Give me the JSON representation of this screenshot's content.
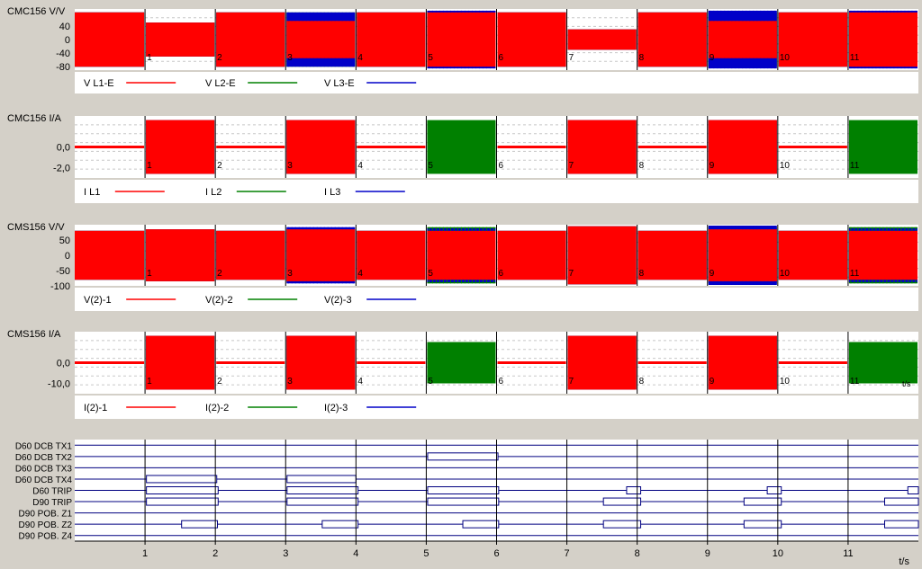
{
  "colors": {
    "background": "#d4d0c8",
    "plot_bg": "#ffffff",
    "grid": "#c8c8c8",
    "divider": "#000000",
    "digital_line": "#000080",
    "L1": "#ff0000",
    "L2": "#008000",
    "L3": "#0000c8"
  },
  "chart_data": [
    {
      "type": "line",
      "title": "CMC156 V/V",
      "xlim": [
        0,
        12
      ],
      "ylim": [
        -90,
        90
      ],
      "yticks": [
        40,
        0,
        -40,
        -80
      ],
      "ytick_labels": [
        "40",
        "0",
        "-40",
        "-80"
      ],
      "xtick_labels": [
        "1",
        "2",
        "3",
        "4",
        "5",
        "6",
        "7",
        "8",
        "9",
        "10",
        "11"
      ],
      "legend": [
        "V L1-E",
        "V L2-E",
        "V L3-E"
      ],
      "segments": [
        {
          "start": 0,
          "end": 1,
          "L1": 80,
          "L2": 80,
          "L3": 80
        },
        {
          "start": 1,
          "end": 2,
          "L1": 50,
          "L2": 50,
          "L3": 50
        },
        {
          "start": 2,
          "end": 3,
          "L1": 80,
          "L2": 80,
          "L3": 80
        },
        {
          "start": 3,
          "end": 4,
          "L1": 55,
          "L2": 80,
          "L3": 80
        },
        {
          "start": 4,
          "end": 5,
          "L1": 80,
          "L2": 80,
          "L3": 80
        },
        {
          "start": 5,
          "end": 6,
          "L1": 80,
          "L2": 80,
          "L3": 85
        },
        {
          "start": 6,
          "end": 7,
          "L1": 80,
          "L2": 80,
          "L3": 80
        },
        {
          "start": 7,
          "end": 8,
          "L1": 30,
          "L2": 30,
          "L3": 30
        },
        {
          "start": 8,
          "end": 9,
          "L1": 80,
          "L2": 80,
          "L3": 80
        },
        {
          "start": 9,
          "end": 10,
          "L1": 55,
          "L2": 80,
          "L3": 85
        },
        {
          "start": 10,
          "end": 11,
          "L1": 80,
          "L2": 80,
          "L3": 80
        },
        {
          "start": 11,
          "end": 12,
          "L1": 80,
          "L2": 80,
          "L3": 85
        }
      ]
    },
    {
      "type": "line",
      "title": "CMC156 I/A",
      "xlim": [
        0,
        12
      ],
      "ylim": [
        -3,
        3
      ],
      "yticks": [
        0,
        -2
      ],
      "ytick_labels": [
        "0,0",
        "-2,0"
      ],
      "xtick_labels": [
        "1",
        "2",
        "3",
        "4",
        "5",
        "6",
        "7",
        "8",
        "9",
        "10",
        "11"
      ],
      "legend": [
        "I L1",
        "I L2",
        "I L3"
      ],
      "segments": [
        {
          "start": 0,
          "end": 1,
          "L1": 0,
          "L2": 0,
          "L3": 0
        },
        {
          "start": 1,
          "end": 2,
          "L1": 2.6,
          "L2": 2.6,
          "L3": 2.6
        },
        {
          "start": 2,
          "end": 3,
          "L1": 0,
          "L2": 0,
          "L3": 0
        },
        {
          "start": 3,
          "end": 4,
          "L1": 2.6,
          "L2": 2.6,
          "L3": 2.6
        },
        {
          "start": 4,
          "end": 5,
          "L1": 0,
          "L2": 0,
          "L3": 0
        },
        {
          "start": 5,
          "end": 6,
          "L1": 0,
          "L2": 2.6,
          "L3": 0
        },
        {
          "start": 6,
          "end": 7,
          "L1": 0,
          "L2": 0,
          "L3": 0
        },
        {
          "start": 7,
          "end": 8,
          "L1": 2.6,
          "L2": 2.6,
          "L3": 2.6
        },
        {
          "start": 8,
          "end": 9,
          "L1": 0,
          "L2": 0,
          "L3": 0
        },
        {
          "start": 9,
          "end": 10,
          "L1": 2.6,
          "L2": 2.6,
          "L3": 2.6
        },
        {
          "start": 10,
          "end": 11,
          "L1": 0,
          "L2": 0,
          "L3": 0
        },
        {
          "start": 11,
          "end": 12,
          "L1": 0,
          "L2": 2.6,
          "L3": 0
        }
      ]
    },
    {
      "type": "line",
      "title": "CMS156 V/V",
      "xlim": [
        0,
        12
      ],
      "ylim": [
        -100,
        100
      ],
      "yticks": [
        50,
        0,
        -50,
        -100
      ],
      "ytick_labels": [
        "50",
        "0",
        "-50",
        "-100"
      ],
      "xtick_labels": [
        "1",
        "2",
        "3",
        "4",
        "5",
        "6",
        "7",
        "8",
        "9",
        "10",
        "11"
      ],
      "legend": [
        "V(2)-1",
        "V(2)-2",
        "V(2)-3"
      ],
      "segments": [
        {
          "start": 0,
          "end": 1,
          "L1": 80,
          "L2": 80,
          "L3": 80
        },
        {
          "start": 1,
          "end": 2,
          "L1": 85,
          "L2": 85,
          "L3": 85
        },
        {
          "start": 2,
          "end": 3,
          "L1": 80,
          "L2": 80,
          "L3": 80
        },
        {
          "start": 3,
          "end": 4,
          "L1": 85,
          "L2": 85,
          "L3": 92
        },
        {
          "start": 4,
          "end": 5,
          "L1": 80,
          "L2": 80,
          "L3": 80
        },
        {
          "start": 5,
          "end": 6,
          "L1": 80,
          "L2": 92,
          "L3": 88
        },
        {
          "start": 6,
          "end": 7,
          "L1": 80,
          "L2": 80,
          "L3": 80
        },
        {
          "start": 7,
          "end": 8,
          "L1": 95,
          "L2": 95,
          "L3": 95
        },
        {
          "start": 8,
          "end": 9,
          "L1": 80,
          "L2": 80,
          "L3": 80
        },
        {
          "start": 9,
          "end": 10,
          "L1": 85,
          "L2": 92,
          "L3": 97
        },
        {
          "start": 10,
          "end": 11,
          "L1": 80,
          "L2": 80,
          "L3": 80
        },
        {
          "start": 11,
          "end": 12,
          "L1": 80,
          "L2": 92,
          "L3": 88
        }
      ]
    },
    {
      "type": "line",
      "title": "CMS156 I/A",
      "xlim": [
        0,
        12
      ],
      "ylim": [
        -15,
        15
      ],
      "yticks": [
        0,
        -10
      ],
      "ytick_labels": [
        "0,0",
        "-10,0"
      ],
      "xtick_labels": [
        "1",
        "2",
        "3",
        "4",
        "5",
        "6",
        "7",
        "8",
        "9",
        "10",
        "11"
      ],
      "end_label": "t/s",
      "legend": [
        "I(2)-1",
        "I(2)-2",
        "I(2)-3"
      ],
      "segments": [
        {
          "start": 0,
          "end": 1,
          "L1": 0,
          "L2": 0,
          "L3": 0
        },
        {
          "start": 1,
          "end": 2,
          "L1": 13,
          "L2": 13,
          "L3": 13
        },
        {
          "start": 2,
          "end": 3,
          "L1": 0,
          "L2": 0,
          "L3": 0
        },
        {
          "start": 3,
          "end": 4,
          "L1": 13,
          "L2": 13,
          "L3": 13
        },
        {
          "start": 4,
          "end": 5,
          "L1": 0,
          "L2": 0,
          "L3": 0
        },
        {
          "start": 5,
          "end": 6,
          "L1": 0,
          "L2": 10,
          "L3": 0
        },
        {
          "start": 6,
          "end": 7,
          "L1": 0,
          "L2": 0,
          "L3": 0
        },
        {
          "start": 7,
          "end": 8,
          "L1": 13,
          "L2": 13,
          "L3": 13
        },
        {
          "start": 8,
          "end": 9,
          "L1": 0,
          "L2": 0,
          "L3": 0
        },
        {
          "start": 9,
          "end": 10,
          "L1": 13,
          "L2": 13,
          "L3": 13
        },
        {
          "start": 10,
          "end": 11,
          "L1": 0,
          "L2": 0,
          "L3": 0
        },
        {
          "start": 11,
          "end": 12,
          "L1": 0,
          "L2": 10,
          "L3": 0
        }
      ]
    },
    {
      "type": "timeline",
      "xlim": [
        0,
        12
      ],
      "xtick_labels": [
        "1",
        "2",
        "3",
        "4",
        "5",
        "6",
        "7",
        "8",
        "9",
        "10",
        "11"
      ],
      "xlabel": "t/s",
      "channels": [
        {
          "name": "D60 DCB TX1",
          "intervals": []
        },
        {
          "name": "D60 DCB TX2",
          "intervals": [
            [
              5.02,
              6.02
            ]
          ]
        },
        {
          "name": "D60 DCB TX3",
          "intervals": []
        },
        {
          "name": "D60 DCB TX4",
          "intervals": [
            [
              1.02,
              2.02
            ],
            [
              3.02,
              4.0
            ]
          ]
        },
        {
          "name": "D60 TRIP",
          "intervals": [
            [
              1.02,
              2.04
            ],
            [
              3.02,
              4.03
            ],
            [
              5.02,
              6.03
            ],
            [
              7.85,
              8.05
            ],
            [
              9.85,
              10.05
            ],
            [
              11.85,
              12.0
            ]
          ]
        },
        {
          "name": "D90 TRIP",
          "intervals": [
            [
              1.02,
              2.04
            ],
            [
              3.02,
              4.03
            ],
            [
              5.02,
              6.03
            ],
            [
              7.52,
              8.05
            ],
            [
              9.52,
              10.05
            ],
            [
              11.52,
              12.0
            ]
          ]
        },
        {
          "name": "D90 POB. Z1",
          "intervals": []
        },
        {
          "name": "D90 POB. Z2",
          "intervals": [
            [
              1.52,
              2.03
            ],
            [
              3.52,
              4.03
            ],
            [
              5.52,
              6.03
            ],
            [
              7.52,
              8.05
            ],
            [
              9.52,
              10.05
            ],
            [
              11.52,
              12.0
            ]
          ]
        },
        {
          "name": "D90 POB. Z4",
          "intervals": []
        }
      ]
    }
  ]
}
